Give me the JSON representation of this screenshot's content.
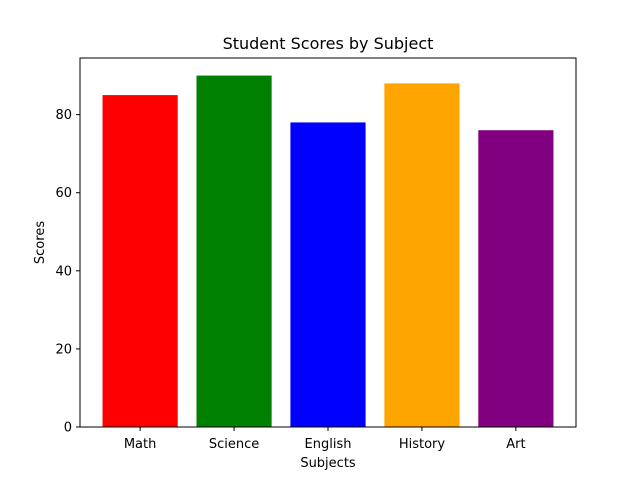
{
  "chart_data": {
    "type": "bar",
    "title": "Student Scores by Subject",
    "xlabel": "Subjects",
    "ylabel": "Scores",
    "categories": [
      "Math",
      "Science",
      "English",
      "History",
      "Art"
    ],
    "values": [
      85,
      90,
      78,
      88,
      76
    ],
    "colors": [
      "#ff0000",
      "#008000",
      "#0000ff",
      "#ffa500",
      "#800080"
    ],
    "ylim": [
      0,
      94.5
    ],
    "yticks": [
      0,
      20,
      40,
      60,
      80
    ],
    "grid": false,
    "legend": "none"
  }
}
